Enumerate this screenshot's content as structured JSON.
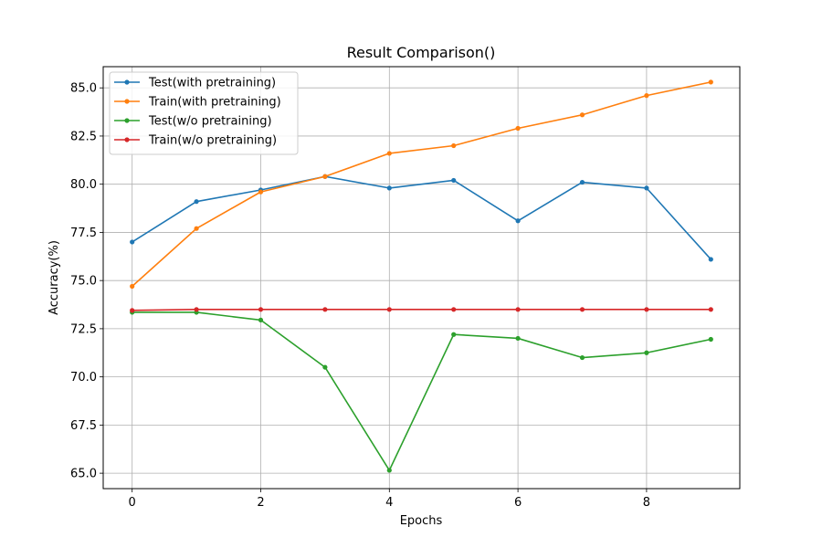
{
  "chart_data": {
    "type": "line",
    "title": "Result Comparison()",
    "xlabel": "Epochs",
    "ylabel": "Accuracy(%)",
    "xlim": [
      -0.45,
      9.45
    ],
    "ylim": [
      64.2,
      86.1
    ],
    "grid": true,
    "legend_position": "top-left",
    "x": [
      0,
      1,
      2,
      3,
      4,
      5,
      6,
      7,
      8,
      9
    ],
    "x_ticks": [
      0,
      2,
      4,
      6,
      8
    ],
    "x_tick_labels": [
      "0",
      "2",
      "4",
      "6",
      "8"
    ],
    "y_ticks": [
      65.0,
      67.5,
      70.0,
      72.5,
      75.0,
      77.5,
      80.0,
      82.5,
      85.0
    ],
    "y_tick_labels": [
      "65.0",
      "67.5",
      "70.0",
      "72.5",
      "75.0",
      "77.5",
      "80.0",
      "82.5",
      "85.0"
    ],
    "series": [
      {
        "name": "Test(with pretraining)",
        "color": "#1f77b4",
        "values": [
          77.0,
          79.1,
          79.7,
          80.4,
          79.8,
          80.2,
          78.1,
          80.1,
          79.8,
          76.1
        ]
      },
      {
        "name": "Train(with pretraining)",
        "color": "#ff7f0e",
        "values": [
          74.7,
          77.7,
          79.6,
          80.4,
          81.6,
          82.0,
          82.9,
          83.6,
          84.6,
          85.3
        ]
      },
      {
        "name": "Test(w/o pretraining)",
        "color": "#2ca02c",
        "values": [
          73.35,
          73.35,
          72.95,
          70.5,
          65.15,
          72.2,
          72.0,
          71.0,
          71.25,
          71.95
        ]
      },
      {
        "name": "Train(w/o pretraining)",
        "color": "#d62728",
        "values": [
          73.45,
          73.5,
          73.5,
          73.5,
          73.5,
          73.5,
          73.5,
          73.5,
          73.5,
          73.5
        ]
      }
    ]
  }
}
